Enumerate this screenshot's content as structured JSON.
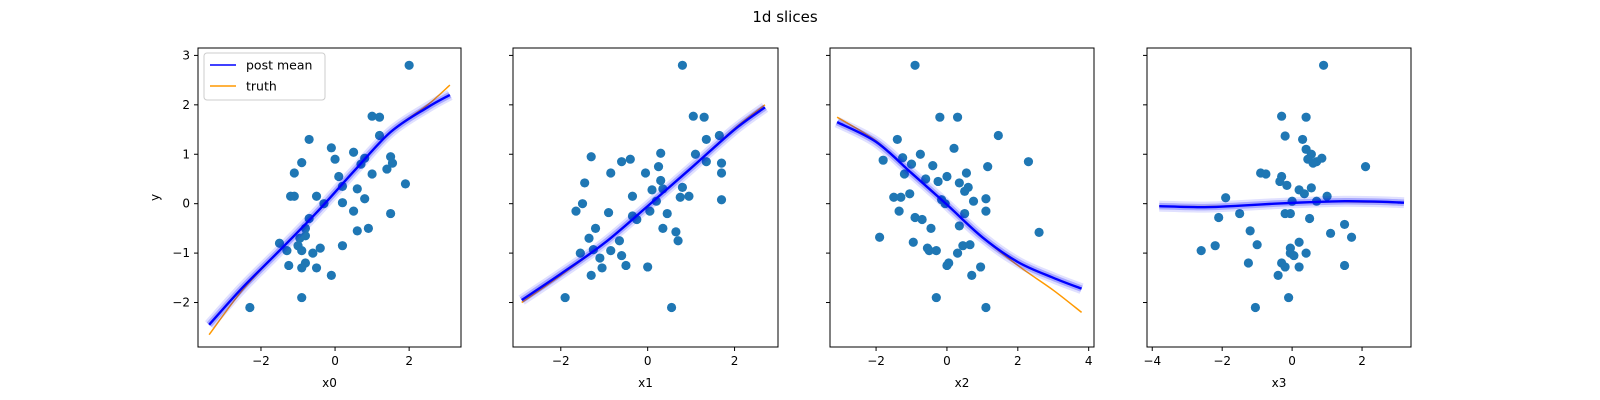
{
  "figure": {
    "title": "1d slices",
    "ylabel": "y",
    "legend": {
      "placement": "upper-left",
      "entries": [
        "post mean",
        "truth"
      ]
    }
  },
  "colors": {
    "posterior": "#0000ff",
    "truth": "#ff9900",
    "points": "#1f77b4"
  },
  "chart_data": [
    {
      "type": "scatter",
      "xlabel": "x0",
      "xlim": [
        -3.7,
        3.4
      ],
      "ylim": [
        -2.9,
        3.15
      ],
      "xticks": [
        -2,
        0,
        2
      ],
      "yticks": [
        -2,
        -1,
        0,
        1,
        2,
        3
      ],
      "points": [
        [
          2.0,
          2.8
        ],
        [
          1.0,
          1.77
        ],
        [
          1.2,
          1.75
        ],
        [
          -0.7,
          1.3
        ],
        [
          1.2,
          1.38
        ],
        [
          -0.1,
          1.13
        ],
        [
          0.5,
          1.04
        ],
        [
          -0.9,
          0.83
        ],
        [
          0.0,
          0.9
        ],
        [
          0.8,
          0.92
        ],
        [
          1.5,
          0.95
        ],
        [
          1.55,
          0.82
        ],
        [
          0.7,
          0.8
        ],
        [
          -1.1,
          0.62
        ],
        [
          0.1,
          0.55
        ],
        [
          1.4,
          0.7
        ],
        [
          1.0,
          0.6
        ],
        [
          0.2,
          0.35
        ],
        [
          0.6,
          0.3
        ],
        [
          -0.5,
          0.15
        ],
        [
          -1.1,
          0.15
        ],
        [
          -1.2,
          0.15
        ],
        [
          0.8,
          0.1
        ],
        [
          1.9,
          0.4
        ],
        [
          0.5,
          -0.15
        ],
        [
          -0.3,
          0.0
        ],
        [
          -0.7,
          -0.3
        ],
        [
          -0.8,
          -0.5
        ],
        [
          1.5,
          -0.2
        ],
        [
          0.2,
          0.02
        ],
        [
          0.9,
          -0.5
        ],
        [
          0.6,
          -0.55
        ],
        [
          -1.5,
          -0.8
        ],
        [
          -0.8,
          -0.65
        ],
        [
          -0.95,
          -0.7
        ],
        [
          -1.0,
          -0.85
        ],
        [
          -0.4,
          -0.9
        ],
        [
          0.2,
          -0.85
        ],
        [
          -0.9,
          -0.95
        ],
        [
          -1.3,
          -0.95
        ],
        [
          -0.6,
          -1.0
        ],
        [
          -0.8,
          -1.2
        ],
        [
          -1.25,
          -1.25
        ],
        [
          -0.5,
          -1.3
        ],
        [
          -0.9,
          -1.3
        ],
        [
          -0.1,
          -1.45
        ],
        [
          -0.9,
          -1.9
        ],
        [
          -2.3,
          -2.1
        ]
      ],
      "series": [
        {
          "name": "post mean",
          "x": [
            -3.4,
            -2.5,
            -1.5,
            -0.5,
            0.5,
            1.5,
            2.5,
            3.1
          ],
          "y": [
            -2.45,
            -1.7,
            -0.95,
            -0.18,
            0.65,
            1.45,
            1.95,
            2.2
          ]
        },
        {
          "name": "truth",
          "x": [
            -3.4,
            -2.5,
            -1.5,
            -0.5,
            0.5,
            1.5,
            2.5,
            3.1
          ],
          "y": [
            -2.65,
            -1.75,
            -0.95,
            -0.18,
            0.65,
            1.45,
            2.0,
            2.4
          ]
        }
      ]
    },
    {
      "type": "scatter",
      "xlabel": "x1",
      "xlim": [
        -3.1,
        3.0
      ],
      "ylim": [
        -2.9,
        3.15
      ],
      "xticks": [
        -2,
        0,
        2
      ],
      "yticks": [
        -2,
        -1,
        0,
        1,
        2,
        3
      ],
      "points": [
        [
          0.8,
          2.8
        ],
        [
          1.05,
          1.77
        ],
        [
          1.3,
          1.75
        ],
        [
          1.35,
          1.3
        ],
        [
          1.65,
          1.38
        ],
        [
          1.1,
          1.0
        ],
        [
          0.3,
          1.02
        ],
        [
          -1.3,
          0.95
        ],
        [
          -0.4,
          0.9
        ],
        [
          -0.6,
          0.85
        ],
        [
          1.7,
          0.82
        ],
        [
          0.25,
          0.75
        ],
        [
          1.35,
          0.85
        ],
        [
          -0.85,
          0.62
        ],
        [
          -0.05,
          0.62
        ],
        [
          1.7,
          0.62
        ],
        [
          -1.45,
          0.42
        ],
        [
          0.3,
          0.47
        ],
        [
          0.1,
          0.28
        ],
        [
          -0.35,
          0.15
        ],
        [
          0.35,
          0.3
        ],
        [
          0.8,
          0.33
        ],
        [
          0.95,
          0.15
        ],
        [
          0.75,
          0.13
        ],
        [
          1.7,
          0.08
        ],
        [
          -1.5,
          0.0
        ],
        [
          0.2,
          0.05
        ],
        [
          -1.65,
          -0.15
        ],
        [
          -0.9,
          -0.18
        ],
        [
          -0.35,
          -0.25
        ],
        [
          -0.25,
          -0.32
        ],
        [
          0.05,
          -0.15
        ],
        [
          0.45,
          -0.2
        ],
        [
          -1.2,
          -0.5
        ],
        [
          0.35,
          -0.5
        ],
        [
          0.65,
          -0.57
        ],
        [
          -1.35,
          -0.7
        ],
        [
          -0.65,
          -0.75
        ],
        [
          0.7,
          -0.75
        ],
        [
          -0.85,
          -0.95
        ],
        [
          -1.25,
          -0.93
        ],
        [
          -0.6,
          -1.05
        ],
        [
          -1.1,
          -1.1
        ],
        [
          -1.55,
          -1.0
        ],
        [
          -0.5,
          -1.25
        ],
        [
          -1.05,
          -1.3
        ],
        [
          0.0,
          -1.28
        ],
        [
          -1.3,
          -1.45
        ],
        [
          -1.9,
          -1.9
        ],
        [
          0.55,
          -2.1
        ]
      ],
      "series": [
        {
          "name": "post mean",
          "x": [
            -2.9,
            -2.0,
            -1.0,
            0.0,
            1.0,
            2.0,
            2.7
          ],
          "y": [
            -1.95,
            -1.42,
            -0.8,
            -0.05,
            0.72,
            1.5,
            1.95
          ]
        },
        {
          "name": "truth",
          "x": [
            -2.9,
            -2.0,
            -1.0,
            0.0,
            1.0,
            2.0,
            2.7
          ],
          "y": [
            -2.0,
            -1.45,
            -0.8,
            -0.05,
            0.72,
            1.52,
            2.0
          ]
        }
      ]
    },
    {
      "type": "scatter",
      "xlabel": "x2",
      "xlim": [
        -3.3,
        4.15
      ],
      "ylim": [
        -2.9,
        3.15
      ],
      "xticks": [
        -2,
        0,
        2,
        4
      ],
      "yticks": [
        -2,
        -1,
        0,
        1,
        2,
        3
      ],
      "points": [
        [
          -0.9,
          2.8
        ],
        [
          -0.2,
          1.75
        ],
        [
          0.3,
          1.75
        ],
        [
          1.45,
          1.38
        ],
        [
          -1.4,
          1.3
        ],
        [
          -0.75,
          1.0
        ],
        [
          0.2,
          1.12
        ],
        [
          -1.8,
          0.88
        ],
        [
          -1.25,
          0.93
        ],
        [
          -1.0,
          0.8
        ],
        [
          2.3,
          0.85
        ],
        [
          -0.4,
          0.77
        ],
        [
          1.15,
          0.75
        ],
        [
          0.55,
          0.62
        ],
        [
          -1.2,
          0.6
        ],
        [
          0.0,
          0.55
        ],
        [
          -0.25,
          0.45
        ],
        [
          -0.6,
          0.5
        ],
        [
          0.35,
          0.42
        ],
        [
          0.6,
          0.33
        ],
        [
          -1.05,
          0.2
        ],
        [
          -0.15,
          0.08
        ],
        [
          0.5,
          0.25
        ],
        [
          -1.5,
          0.13
        ],
        [
          -1.3,
          0.13
        ],
        [
          1.1,
          0.1
        ],
        [
          0.75,
          0.05
        ],
        [
          -0.05,
          0.0
        ],
        [
          1.1,
          -0.15
        ],
        [
          -1.35,
          -0.15
        ],
        [
          0.5,
          -0.2
        ],
        [
          -0.9,
          -0.28
        ],
        [
          -0.7,
          -0.32
        ],
        [
          0.35,
          -0.45
        ],
        [
          -0.45,
          -0.5
        ],
        [
          2.6,
          -0.58
        ],
        [
          -1.9,
          -0.68
        ],
        [
          -0.95,
          -0.78
        ],
        [
          0.45,
          -0.85
        ],
        [
          0.65,
          -0.83
        ],
        [
          -0.55,
          -0.9
        ],
        [
          -0.3,
          -0.95
        ],
        [
          0.05,
          -1.2
        ],
        [
          0.0,
          -1.25
        ],
        [
          0.95,
          -1.28
        ],
        [
          0.3,
          -1.0
        ],
        [
          0.7,
          -1.45
        ],
        [
          -0.3,
          -1.9
        ],
        [
          1.1,
          -2.1
        ],
        [
          -0.5,
          -0.95
        ]
      ],
      "series": [
        {
          "name": "post mean",
          "x": [
            -3.1,
            -2.0,
            -1.0,
            0.0,
            1.0,
            2.0,
            3.0,
            3.8
          ],
          "y": [
            1.65,
            1.25,
            0.62,
            -0.02,
            -0.68,
            -1.18,
            -1.5,
            -1.72
          ]
        },
        {
          "name": "truth",
          "x": [
            -3.1,
            -2.0,
            -1.0,
            0.0,
            1.0,
            2.0,
            3.0,
            3.8
          ],
          "y": [
            1.75,
            1.27,
            0.62,
            -0.02,
            -0.68,
            -1.25,
            -1.75,
            -2.2
          ]
        }
      ]
    },
    {
      "type": "scatter",
      "xlabel": "x3",
      "xlim": [
        -4.15,
        3.4
      ],
      "ylim": [
        -2.9,
        3.15
      ],
      "xticks": [
        -4,
        -2,
        0,
        2
      ],
      "yticks": [
        -2,
        -1,
        0,
        1,
        2,
        3
      ],
      "points": [
        [
          0.9,
          2.8
        ],
        [
          -0.3,
          1.77
        ],
        [
          0.4,
          1.75
        ],
        [
          -0.2,
          1.37
        ],
        [
          0.3,
          1.3
        ],
        [
          0.4,
          1.1
        ],
        [
          0.55,
          1.0
        ],
        [
          0.45,
          0.9
        ],
        [
          0.7,
          0.85
        ],
        [
          0.85,
          0.92
        ],
        [
          0.6,
          0.82
        ],
        [
          2.1,
          0.75
        ],
        [
          -0.9,
          0.62
        ],
        [
          -0.75,
          0.6
        ],
        [
          -0.3,
          0.55
        ],
        [
          -0.35,
          0.45
        ],
        [
          -0.15,
          0.37
        ],
        [
          0.2,
          0.28
        ],
        [
          0.55,
          0.32
        ],
        [
          -1.9,
          0.12
        ],
        [
          0.0,
          0.05
        ],
        [
          0.7,
          0.05
        ],
        [
          1.0,
          0.15
        ],
        [
          0.35,
          0.2
        ],
        [
          -0.2,
          -0.2
        ],
        [
          -0.05,
          -0.2
        ],
        [
          -1.5,
          -0.2
        ],
        [
          -2.1,
          -0.28
        ],
        [
          0.5,
          -0.3
        ],
        [
          -1.2,
          -0.55
        ],
        [
          1.5,
          -0.42
        ],
        [
          1.7,
          -0.68
        ],
        [
          0.2,
          -0.78
        ],
        [
          -1.0,
          -0.83
        ],
        [
          -0.05,
          -0.9
        ],
        [
          -0.05,
          -1.0
        ],
        [
          0.05,
          -1.05
        ],
        [
          -2.6,
          -0.95
        ],
        [
          0.4,
          -1.0
        ],
        [
          1.1,
          -0.6
        ],
        [
          -1.25,
          -1.2
        ],
        [
          -0.3,
          -1.2
        ],
        [
          0.2,
          -1.28
        ],
        [
          -0.2,
          -1.28
        ],
        [
          1.5,
          -1.25
        ],
        [
          -0.4,
          -1.45
        ],
        [
          -0.1,
          -1.9
        ],
        [
          -1.05,
          -2.1
        ],
        [
          -2.2,
          -0.85
        ]
      ],
      "series": [
        {
          "name": "post mean",
          "x": [
            -3.8,
            -2.5,
            -1.5,
            -0.5,
            0.5,
            1.5,
            2.5,
            3.2
          ],
          "y": [
            -0.05,
            -0.07,
            -0.04,
            0.0,
            0.03,
            0.05,
            0.04,
            0.02
          ]
        },
        {
          "name": "truth",
          "x": [
            -3.8,
            -2.5,
            -1.5,
            -0.5,
            0.5,
            1.5,
            2.5,
            3.2
          ],
          "y": [
            -0.05,
            -0.06,
            -0.04,
            0.0,
            0.03,
            0.04,
            0.03,
            0.02
          ]
        }
      ]
    }
  ]
}
